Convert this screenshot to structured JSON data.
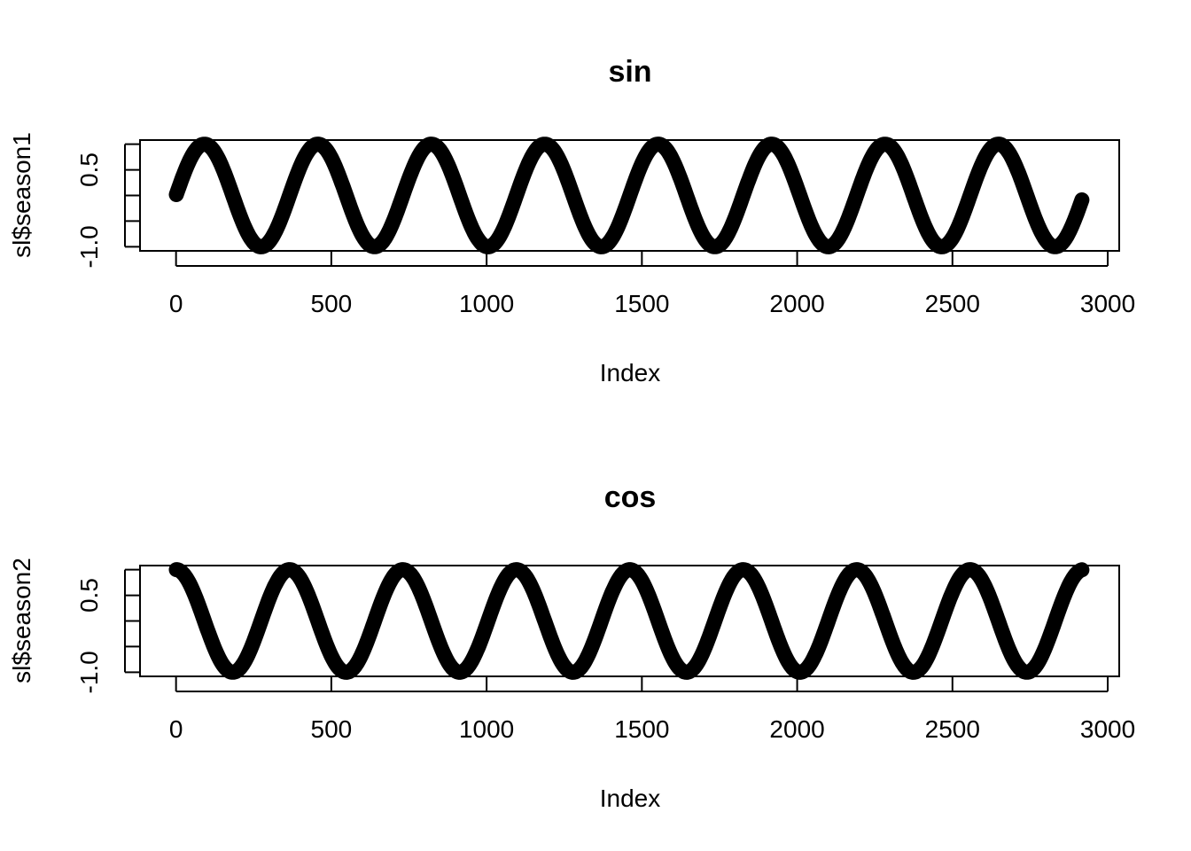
{
  "chart_data": [
    {
      "type": "scatter",
      "title": "sin",
      "xlabel": "Index",
      "ylabel": "sl$season1",
      "function": "sin",
      "n_points": 2920,
      "period": 365.25,
      "amplitude": 1,
      "x_range_data": [
        1,
        2920
      ],
      "xlim": [
        -116,
        3037
      ],
      "ylim": [
        -1.08,
        1.08
      ],
      "x_ticks": [
        0,
        500,
        1000,
        1500,
        2000,
        2500,
        3000
      ],
      "x_tick_labels": [
        "0",
        "500",
        "1000",
        "1500",
        "2000",
        "2500",
        "3000"
      ],
      "y_ticks": [
        -1.0,
        -0.5,
        0.0,
        0.5,
        1.0
      ],
      "y_tick_labels": [
        "-1.0",
        "",
        "",
        "0.5",
        ""
      ],
      "grid": false,
      "legend": "none",
      "point_color": "#000000"
    },
    {
      "type": "scatter",
      "title": "cos",
      "xlabel": "Index",
      "ylabel": "sl$season2",
      "function": "cos",
      "n_points": 2920,
      "period": 365.25,
      "amplitude": 1,
      "x_range_data": [
        1,
        2920
      ],
      "xlim": [
        -116,
        3037
      ],
      "ylim": [
        -1.08,
        1.08
      ],
      "x_ticks": [
        0,
        500,
        1000,
        1500,
        2000,
        2500,
        3000
      ],
      "x_tick_labels": [
        "0",
        "500",
        "1000",
        "1500",
        "2000",
        "2500",
        "3000"
      ],
      "y_ticks": [
        -1.0,
        -0.5,
        0.0,
        0.5,
        1.0
      ],
      "y_tick_labels": [
        "-1.0",
        "",
        "",
        "0.5",
        ""
      ],
      "grid": false,
      "legend": "none",
      "point_color": "#000000"
    }
  ]
}
